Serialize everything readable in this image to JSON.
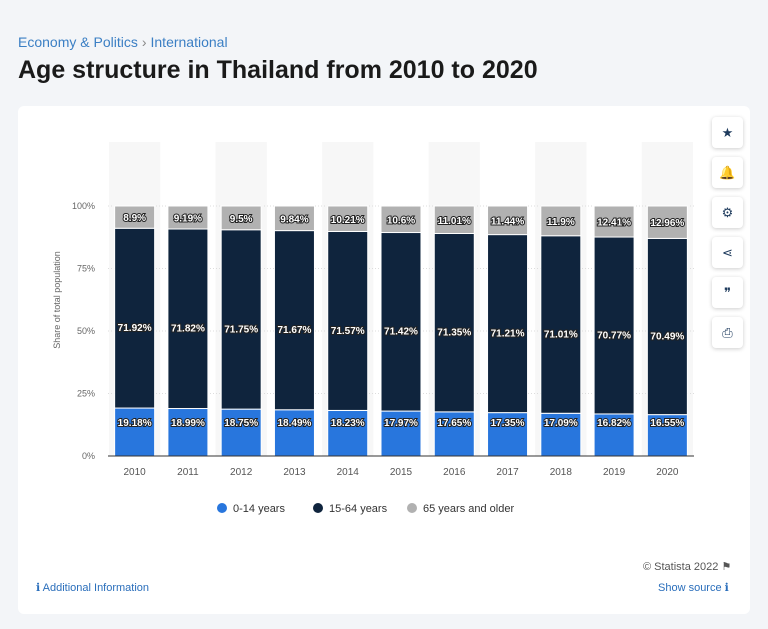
{
  "breadcrumb": [
    "Economy & Politics",
    "International"
  ],
  "title": "Age structure in Thailand from 2010 to 2020",
  "side_buttons": [
    {
      "icon": "star-icon",
      "glyph": "★"
    },
    {
      "icon": "bell-icon",
      "glyph": "🔔"
    },
    {
      "icon": "gear-icon",
      "glyph": "⚙"
    },
    {
      "icon": "share-icon",
      "glyph": "⋖"
    },
    {
      "icon": "quote-icon",
      "glyph": "❞"
    },
    {
      "icon": "print-icon",
      "glyph": "⎙"
    }
  ],
  "footer": {
    "copyright": "© Statista 2022",
    "additional": "Additional Information",
    "source": "Show source"
  },
  "chart_data": {
    "type": "bar",
    "stacked": true,
    "categories": [
      "2010",
      "2011",
      "2012",
      "2013",
      "2014",
      "2015",
      "2016",
      "2017",
      "2018",
      "2019",
      "2020"
    ],
    "ylabel": "Share of total population",
    "ylim": [
      0,
      100
    ],
    "yticks": [
      "0%",
      "25%",
      "50%",
      "75%",
      "100%"
    ],
    "legend_position": "bottom",
    "series": [
      {
        "name": "0-14 years",
        "color": "#2876dd",
        "values": [
          19.18,
          18.99,
          18.75,
          18.49,
          18.23,
          17.97,
          17.65,
          17.35,
          17.09,
          16.82,
          16.55
        ]
      },
      {
        "name": "15-64 years",
        "color": "#0f243d",
        "values": [
          71.92,
          71.82,
          71.75,
          71.67,
          71.57,
          71.42,
          71.35,
          71.21,
          71.01,
          70.77,
          70.49
        ]
      },
      {
        "name": "65 years and older",
        "color": "#b1b1b1",
        "values": [
          8.9,
          9.19,
          9.5,
          9.84,
          10.21,
          10.6,
          11.01,
          11.44,
          11.9,
          12.41,
          12.96
        ]
      }
    ]
  }
}
